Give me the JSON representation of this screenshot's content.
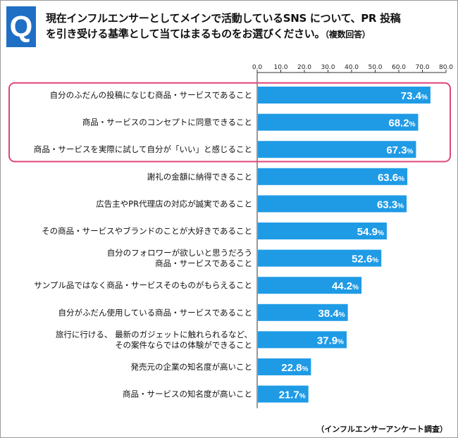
{
  "badge": "Q",
  "question": {
    "line1": "現在インフルエンサーとしてメインで活動しているSNS について、PR 投稿",
    "line2": "を引き受ける基準として当てはまるものをお選びください。",
    "note": "（複数回答）"
  },
  "source": "（インフルエンサーアンケート調査）",
  "colors": {
    "bar": "#1f9be6",
    "highlight": "#e0457a",
    "label_text": "#ffffff"
  },
  "chart_data": {
    "type": "bar",
    "orientation": "horizontal",
    "xlim": [
      0,
      80
    ],
    "ticks": [
      "0.0",
      "10.0",
      "20.0",
      "30.0",
      "40.0",
      "50.0",
      "60.0",
      "70.0",
      "80.0"
    ],
    "unit": "%",
    "highlight_top_n": 3,
    "categories": [
      [
        "自分のふだんの投稿になじむ商品・サービスであること"
      ],
      [
        "商品・サービスのコンセプトに同意できること"
      ],
      [
        "商品・サービスを実際に試して自分が「いい」と感じること"
      ],
      [
        "謝礼の金額に納得できること"
      ],
      [
        "広告主やPR代理店の対応が誠実であること"
      ],
      [
        "その商品・サービスやブランドのことが大好きであること"
      ],
      [
        "自分のフォロワーが欲しいと思うだろう",
        "商品・サービスであること"
      ],
      [
        "サンプル品ではなく商品・サービスそのものがもらえること"
      ],
      [
        "自分がふだん使用している商品・サービスであること"
      ],
      [
        "旅行に行ける、 最新のガジェットに触れられるなど、",
        "その案件ならではの体験ができること"
      ],
      [
        "発売元の企業の知名度が高いこと"
      ],
      [
        "商品・サービスの知名度が高いこと"
      ]
    ],
    "values": [
      73.4,
      68.2,
      67.3,
      63.6,
      63.3,
      54.9,
      52.6,
      44.2,
      38.4,
      37.9,
      22.8,
      21.7
    ],
    "value_labels": [
      "73.4",
      "68.2",
      "67.3",
      "63.6",
      "63.3",
      "54.9",
      "52.6",
      "44.2",
      "38.4",
      "37.9",
      "22.8",
      "21.7"
    ]
  }
}
